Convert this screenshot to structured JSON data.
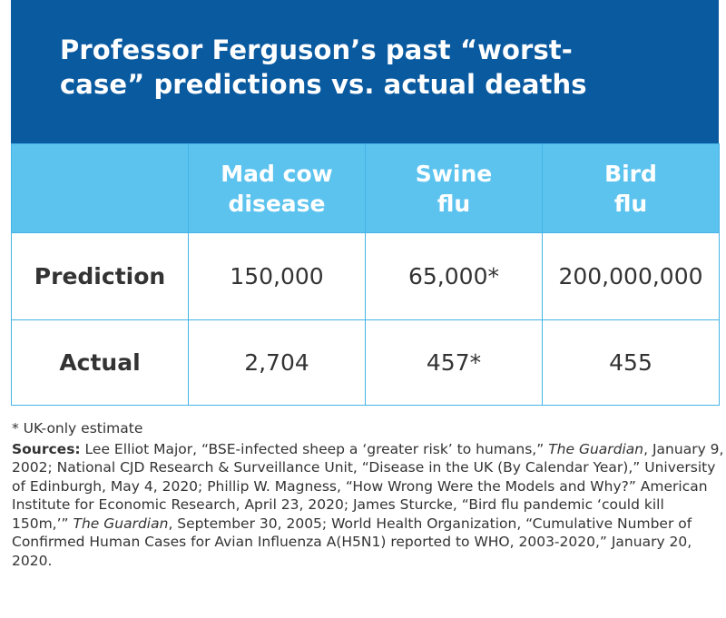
{
  "title": "Professor Ferguson’s past “worst-case” predictions vs. actual deaths",
  "colors": {
    "header_bg": "#0a5aa0",
    "column_header_bg": "#5cc3ef",
    "grid_line": "#45b3e6",
    "header_text": "#ffffff",
    "body_text": "#333333"
  },
  "chart_data": {
    "type": "table",
    "columns": [
      "",
      "Mad cow disease",
      "Swine flu",
      "Bird flu"
    ],
    "column_lines": [
      [
        "Mad cow",
        "disease"
      ],
      [
        "Swine",
        "flu"
      ],
      [
        "Bird",
        "flu"
      ]
    ],
    "rows": [
      {
        "label": "Prediction",
        "values": [
          "150,000",
          "65,000*",
          "200,000,000"
        ]
      },
      {
        "label": "Actual",
        "values": [
          "2,704",
          "457*",
          "455"
        ]
      }
    ]
  },
  "footnote": "* UK-only estimate",
  "sources": {
    "label": "Sources:",
    "parts": [
      " Lee Elliot Major, “BSE-infected sheep a ‘greater risk’ to humans,” ",
      "The Guardian",
      ", January 9, 2002; National CJD Research & Surveillance Unit, “Disease in the UK (By Calendar Year),” University of Edinburgh, May 4, 2020; Phillip W. Magness, “How Wrong Were the Models and Why?” American Institute for Economic Research, April 23, 2020; James Sturcke, “Bird flu pandemic ‘could kill 150m,’” ",
      "The Guardian",
      ", September 30, 2005; World Health Organization, “Cumulative Number of Confirmed Human Cases for Avian Influenza A(H5N1) reported to WHO, 2003-2020,” January 20, 2020."
    ]
  }
}
